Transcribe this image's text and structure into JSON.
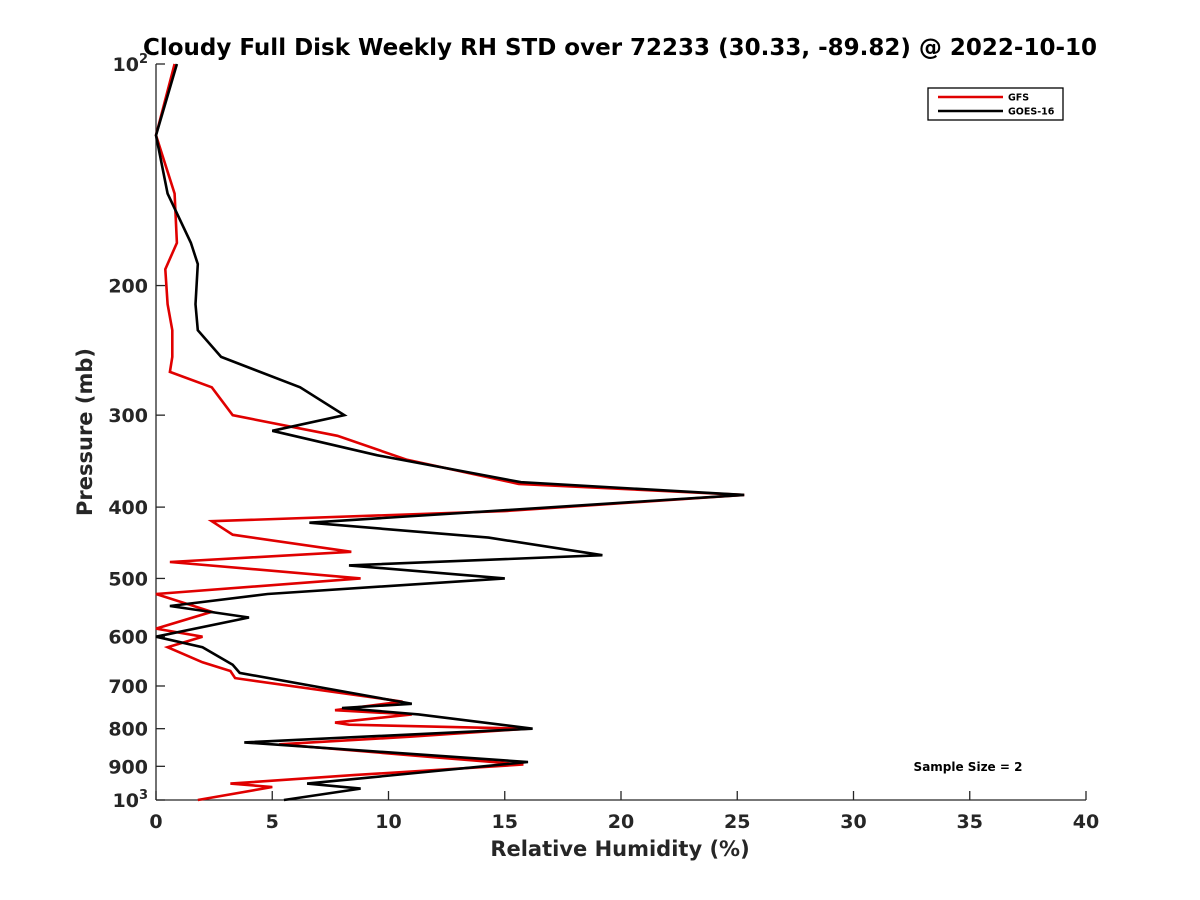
{
  "chart_data": {
    "type": "line",
    "title": "Cloudy Full Disk Weekly RH STD over 72233 (30.33, -89.82) @ 2022-10-10",
    "xlabel": "Relative Humidity (%)",
    "ylabel": "Pressure (mb)",
    "xlim": [
      0,
      40
    ],
    "ylim": [
      100,
      1000
    ],
    "yscale": "log",
    "y_reversed": true,
    "x_ticks": [
      0,
      5,
      10,
      15,
      20,
      25,
      30,
      35,
      40
    ],
    "y_ticks": [
      {
        "value": 100,
        "label": "10",
        "sup": "2"
      },
      {
        "value": 200,
        "label": "200"
      },
      {
        "value": 300,
        "label": "300"
      },
      {
        "value": 400,
        "label": "400"
      },
      {
        "value": 500,
        "label": "500"
      },
      {
        "value": 600,
        "label": "600"
      },
      {
        "value": 700,
        "label": "700"
      },
      {
        "value": 800,
        "label": "800"
      },
      {
        "value": 900,
        "label": "900"
      },
      {
        "value": 1000,
        "label": "10",
        "sup": "3"
      }
    ],
    "legend_position": "top-right",
    "annotation": "Sample Size = 2",
    "series": [
      {
        "name": "GFS",
        "color": "#e00000",
        "points": [
          [
            0.8,
            100
          ],
          [
            0.0,
            125
          ],
          [
            0.8,
            150
          ],
          [
            0.9,
            175
          ],
          [
            0.4,
            190
          ],
          [
            0.5,
            212
          ],
          [
            0.7,
            230
          ],
          [
            0.7,
            250
          ],
          [
            0.6,
            262
          ],
          [
            2.4,
            275
          ],
          [
            3.3,
            300
          ],
          [
            7.8,
            320
          ],
          [
            10.8,
            345
          ],
          [
            15.6,
            372
          ],
          [
            25.3,
            385
          ],
          [
            15.0,
            405
          ],
          [
            2.4,
            418
          ],
          [
            3.3,
            436
          ],
          [
            8.4,
            460
          ],
          [
            0.6,
            475
          ],
          [
            8.8,
            500
          ],
          [
            0.0,
            525
          ],
          [
            2.4,
            555
          ],
          [
            0.0,
            585
          ],
          [
            2.0,
            600
          ],
          [
            0.5,
            620
          ],
          [
            2.0,
            650
          ],
          [
            3.2,
            668
          ],
          [
            3.4,
            683
          ],
          [
            10.6,
            735
          ],
          [
            7.7,
            755
          ],
          [
            11.0,
            765
          ],
          [
            7.7,
            785
          ],
          [
            8.3,
            790
          ],
          [
            16.0,
            800
          ],
          [
            11.0,
            820
          ],
          [
            5.3,
            840
          ],
          [
            12.0,
            875
          ],
          [
            15.8,
            895
          ],
          [
            8.5,
            925
          ],
          [
            3.2,
            950
          ],
          [
            5.0,
            960
          ],
          [
            1.8,
            1000
          ]
        ]
      },
      {
        "name": "GOES-16",
        "color": "#000000",
        "points": [
          [
            0.9,
            100
          ],
          [
            0.0,
            125
          ],
          [
            0.5,
            150
          ],
          [
            1.5,
            175
          ],
          [
            1.8,
            187
          ],
          [
            1.7,
            212
          ],
          [
            1.8,
            230
          ],
          [
            2.8,
            250
          ],
          [
            6.2,
            275
          ],
          [
            8.1,
            300
          ],
          [
            5.0,
            315
          ],
          [
            9.5,
            340
          ],
          [
            15.7,
            370
          ],
          [
            25.3,
            385
          ],
          [
            6.6,
            420
          ],
          [
            14.3,
            440
          ],
          [
            19.2,
            465
          ],
          [
            8.3,
            480
          ],
          [
            15.0,
            500
          ],
          [
            4.8,
            525
          ],
          [
            0.6,
            545
          ],
          [
            4.0,
            565
          ],
          [
            0.0,
            600
          ],
          [
            2.0,
            620
          ],
          [
            3.3,
            655
          ],
          [
            3.6,
            672
          ],
          [
            11.0,
            740
          ],
          [
            8.0,
            750
          ],
          [
            11.3,
            765
          ],
          [
            16.2,
            800
          ],
          [
            3.8,
            835
          ],
          [
            16.0,
            888
          ],
          [
            6.5,
            950
          ],
          [
            8.8,
            965
          ],
          [
            5.5,
            1000
          ]
        ]
      }
    ]
  }
}
